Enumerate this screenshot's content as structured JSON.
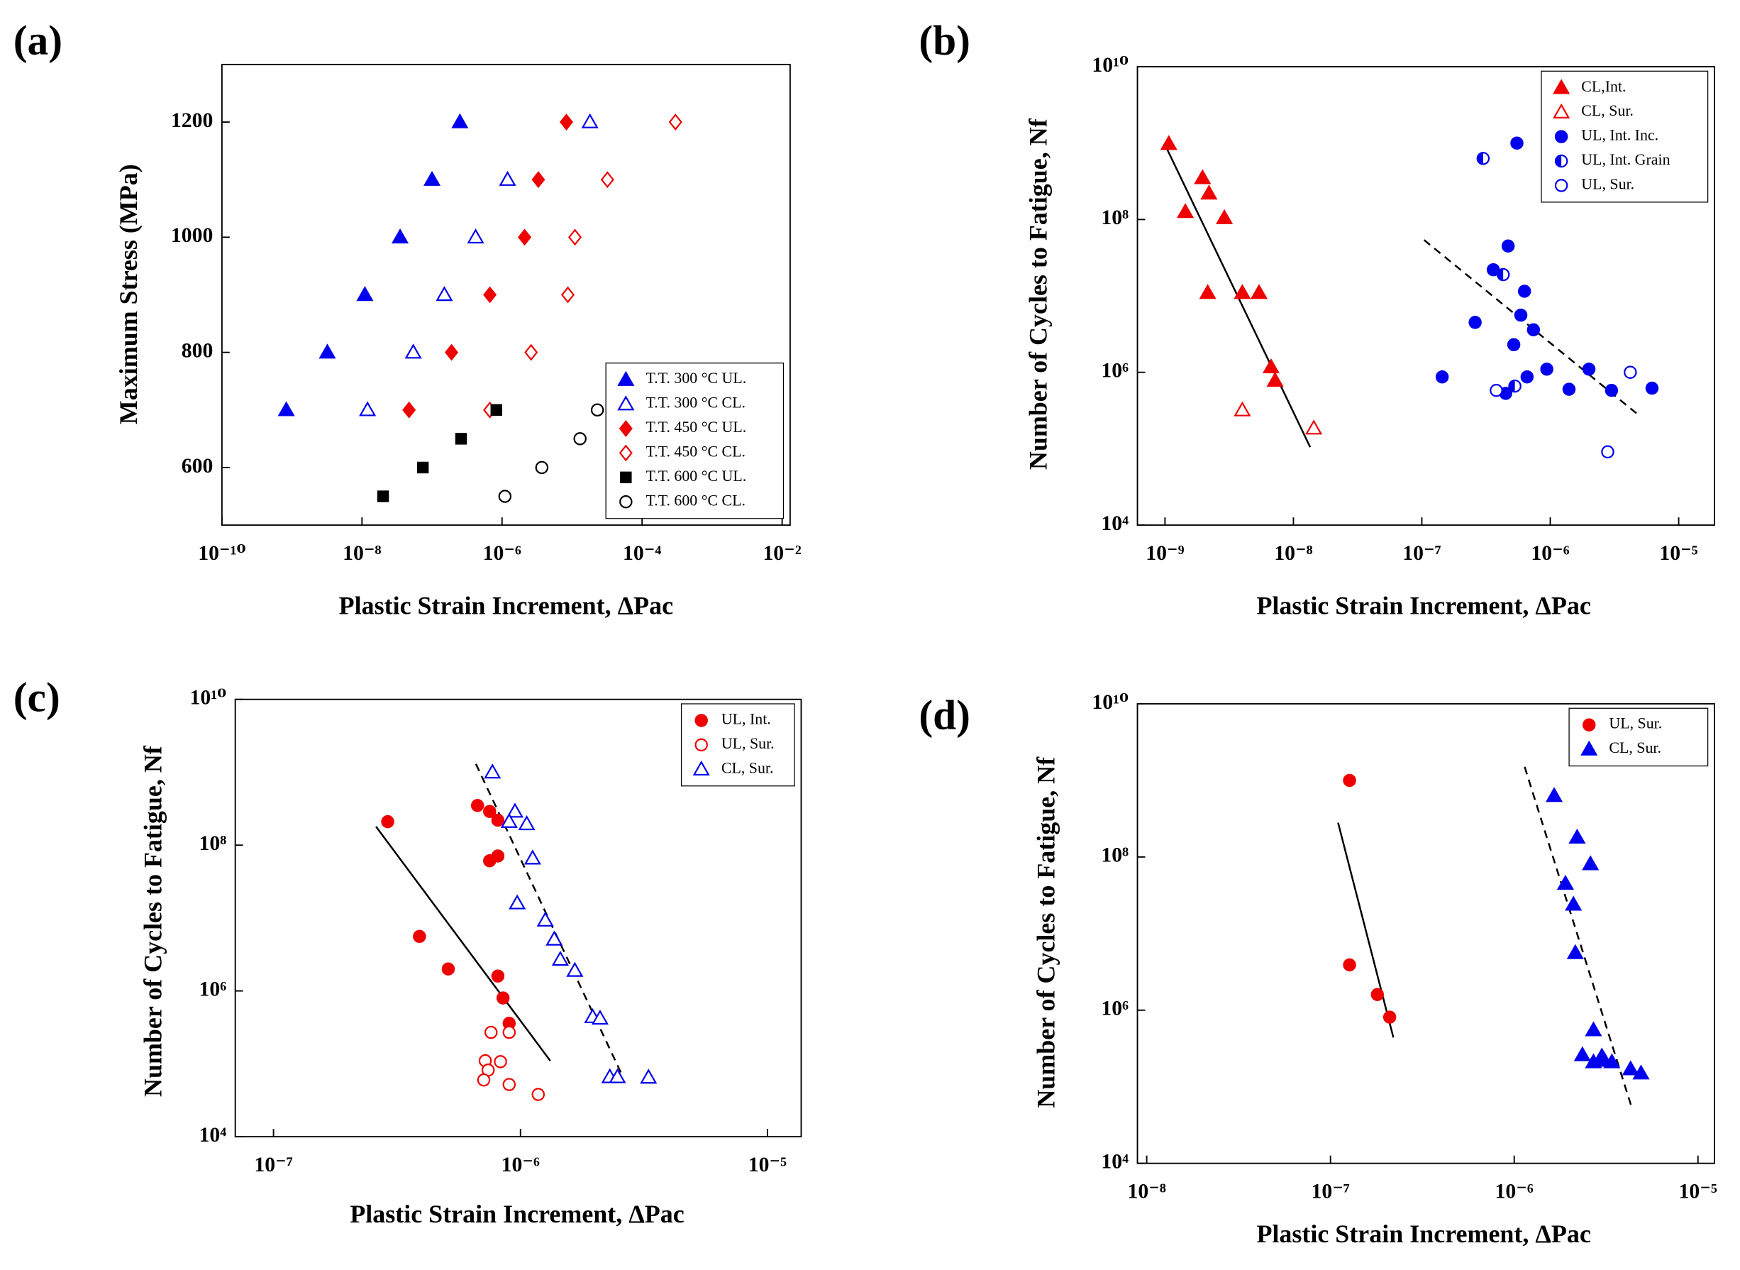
{
  "chart_data": [
    {
      "type": "scatter",
      "panel_label": "(a)",
      "x_label": "Plastic Strain Increment, ΔPac",
      "y_label": "Maximum Stress (MPa)",
      "xscale": "log",
      "yscale": "linear",
      "xlim": [
        1e-10,
        0.013
      ],
      "ylim": [
        500,
        1300
      ],
      "xticks": [
        {
          "value": 1e-10,
          "label": "10⁻¹⁰"
        },
        {
          "value": 1e-08,
          "label": "10⁻⁸"
        },
        {
          "value": 1e-06,
          "label": "10⁻⁶"
        },
        {
          "value": 0.0001,
          "label": "10⁻⁴"
        },
        {
          "value": 0.01,
          "label": "10⁻²"
        }
      ],
      "yticks": [
        600,
        800,
        1000,
        1200
      ],
      "legend": "lower right",
      "series": [
        {
          "name": "T.T. 300 °C UL.",
          "color": "#0000ee",
          "marker": "triangle",
          "filled": true,
          "x": [
            8.3e-10,
            3.2e-09,
            1.1e-08,
            3.5e-08,
            1e-07,
            2.5e-07
          ],
          "values": [
            700,
            800,
            900,
            1000,
            1100,
            1200
          ]
        },
        {
          "name": "T.T. 300 °C CL.",
          "color": "#0000ee",
          "marker": "triangle",
          "filled": false,
          "x": [
            1.2e-08,
            5.4e-08,
            1.5e-07,
            4.2e-07,
            1.2e-06,
            1.8e-05
          ],
          "values": [
            700,
            800,
            900,
            1000,
            1100,
            1200
          ]
        },
        {
          "name": "T.T. 450 °C UL.",
          "color": "#ee0000",
          "marker": "diamond",
          "filled": true,
          "x": [
            4.7e-08,
            1.9e-07,
            6.7e-07,
            2.1e-06,
            3.3e-06,
            8.3e-06
          ],
          "values": [
            700,
            800,
            900,
            1000,
            1100,
            1200
          ]
        },
        {
          "name": "T.T. 450 °C CL.",
          "color": "#ee0000",
          "marker": "diamond",
          "filled": false,
          "x": [
            6.7e-07,
            2.6e-06,
            8.7e-06,
            1.1e-05,
            3.2e-05,
            0.0003
          ],
          "values": [
            700,
            800,
            900,
            1000,
            1100,
            1200
          ]
        },
        {
          "name": "T.T. 600 °C UL.",
          "color": "#000000",
          "marker": "square",
          "filled": true,
          "x": [
            2e-08,
            7.4e-08,
            2.6e-07,
            8.3e-07
          ],
          "values": [
            550,
            600,
            650,
            700
          ]
        },
        {
          "name": "T.T. 600 °C CL.",
          "color": "#000000",
          "marker": "circle",
          "filled": false,
          "x": [
            1.1e-06,
            3.7e-06,
            1.3e-05,
            2.3e-05
          ],
          "values": [
            550,
            600,
            650,
            700
          ]
        }
      ]
    },
    {
      "type": "scatter",
      "panel_label": "(b)",
      "x_label": "Plastic Strain Increment, ΔPac",
      "y_label": "Number of Cycles to Fatigue, Nf",
      "xscale": "log",
      "yscale": "log",
      "xlim": [
        6.1e-10,
        1.9e-05
      ],
      "ylim": [
        10000,
        10000000000
      ],
      "xticks": [
        {
          "value": 1e-09,
          "label": "10⁻⁹"
        },
        {
          "value": 1e-08,
          "label": "10⁻⁸"
        },
        {
          "value": 1e-07,
          "label": "10⁻⁷"
        },
        {
          "value": 1e-06,
          "label": "10⁻⁶"
        },
        {
          "value": 1e-05,
          "label": "10⁻⁵"
        }
      ],
      "yticks": [
        {
          "value": 10000,
          "label": "10⁴"
        },
        {
          "value": 1000000,
          "label": "10⁶"
        },
        {
          "value": 100000000,
          "label": "10⁸"
        },
        {
          "value": 10000000000,
          "label": "10¹⁰"
        }
      ],
      "legend": "upper right",
      "series": [
        {
          "name": "CL,Int.",
          "color": "#ee0000",
          "marker": "triangle",
          "filled": true,
          "x": [
            1.07e-09,
            1.44e-09,
            1.96e-09,
            2.2e-09,
            2.9e-09,
            2.15e-09,
            4e-09,
            5.4e-09,
            6.7e-09,
            7.2e-09
          ],
          "values": [
            980000000,
            126000000,
            350000000,
            220000000,
            105000000,
            11000000,
            11000000,
            11000000,
            1170000,
            780000
          ]
        },
        {
          "name": "CL, Sur.",
          "color": "#ee0000",
          "marker": "triangle",
          "filled": false,
          "x": [
            4e-09,
            1.44e-08
          ],
          "values": [
            320000,
            185000
          ]
        },
        {
          "name": "UL, Int. Inc.",
          "color": "#0000ee",
          "marker": "circle",
          "filled": true,
          "x": [
            5.5e-07,
            4.7e-07,
            3.6e-07,
            6.3e-07,
            2.6e-07,
            5.9e-07,
            7.4e-07,
            5.2e-07,
            9.4e-07,
            2e-06,
            1.44e-07,
            6.6e-07,
            4.5e-07,
            1.4e-06,
            3e-06,
            6.2e-06
          ],
          "values": [
            1000000000,
            45000000,
            22000000,
            11500000,
            4500000,
            5600000,
            3600000,
            2300000,
            1100000,
            1100000,
            870000,
            870000,
            530000,
            600000,
            580000,
            620000
          ]
        },
        {
          "name": "UL, Int. Grain",
          "color": "#0000ee",
          "marker": "half-circle",
          "filled": true,
          "x": [
            3e-07,
            4.3e-07,
            5.3e-07
          ],
          "values": [
            630000000,
            19000000,
            660000
          ]
        },
        {
          "name": "UL, Sur.",
          "color": "#0000ee",
          "marker": "circle",
          "filled": false,
          "x": [
            3.8e-07,
            4.2e-06,
            2.8e-06
          ],
          "values": [
            580000,
            1000000,
            91000
          ]
        }
      ],
      "fits": [
        {
          "x": [
            1e-09,
            1.35e-08
          ],
          "values": [
            950000000,
            105000
          ],
          "dash": false
        },
        {
          "x": [
            1.04e-07,
            4.7e-06
          ],
          "values": [
            54000000,
            290000
          ],
          "dash": true
        }
      ]
    },
    {
      "type": "scatter",
      "panel_label": "(c)",
      "x_label": "Plastic Strain Increment, ΔPac",
      "y_label": "Number of Cycles to Fatigue, Nf",
      "xscale": "log",
      "yscale": "log",
      "xlim": [
        7e-08,
        1.37e-05
      ],
      "ylim": [
        10000,
        10000000000
      ],
      "xticks": [
        {
          "value": 1e-07,
          "label": "10⁻⁷"
        },
        {
          "value": 1e-06,
          "label": "10⁻⁶"
        },
        {
          "value": 1e-05,
          "label": "10⁻⁵"
        }
      ],
      "yticks": [
        {
          "value": 10000,
          "label": "10⁴"
        },
        {
          "value": 1000000,
          "label": "10⁶"
        },
        {
          "value": 100000000,
          "label": "10⁸"
        },
        {
          "value": 10000000000,
          "label": "10¹⁰"
        }
      ],
      "legend": "upper right",
      "series": [
        {
          "name": "UL, Int.",
          "color": "#ee0000",
          "marker": "circle",
          "filled": true,
          "x": [
            2.9e-07,
            6.7e-07,
            7.5e-07,
            8.1e-07,
            7.5e-07,
            8.1e-07,
            3.9e-07,
            5.1e-07,
            8.1e-07,
            8.5e-07,
            9e-07
          ],
          "values": [
            210000000,
            350000000,
            290000000,
            220000000,
            61000000,
            71000000,
            5600000,
            2000000,
            1600000,
            800000,
            360000
          ]
        },
        {
          "name": "UL, Sur.",
          "color": "#ee0000",
          "marker": "circle",
          "filled": false,
          "x": [
            7.6e-07,
            9e-07,
            7.2e-07,
            8.3e-07,
            7.4e-07,
            7.1e-07,
            9e-07,
            1.18e-06
          ],
          "values": [
            270000,
            270000,
            110000,
            107000,
            82000,
            60000,
            52000,
            38000
          ]
        },
        {
          "name": "CL, Sur.",
          "color": "#0000ee",
          "marker": "triangle",
          "filled": false,
          "x": [
            7.7e-07,
            9.5e-07,
            9e-07,
            1.06e-06,
            1.12e-06,
            9.7e-07,
            1.26e-06,
            1.37e-06,
            1.45e-06,
            1.66e-06,
            1.96e-06,
            2.1e-06,
            2.3e-06,
            2.47e-06,
            3.3e-06
          ],
          "values": [
            1000000000,
            290000000,
            210000000,
            195000000,
            66000000,
            16000000,
            9300000,
            5100000,
            2700000,
            1900000,
            440000,
            420000,
            66000,
            66000,
            65000
          ]
        }
      ],
      "fits": [
        {
          "x": [
            2.6e-07,
            1.32e-06
          ],
          "values": [
            180000000,
            110000
          ],
          "dash": false
        },
        {
          "x": [
            6.6e-07,
            2.6e-06
          ],
          "values": [
            1300000000,
            66000
          ],
          "dash": true
        }
      ]
    },
    {
      "type": "scatter",
      "panel_label": "(d)",
      "x_label": "Plastic Strain Increment, ΔPac",
      "y_label": "Number of Cycles to Fatigue, Nf",
      "xscale": "log",
      "yscale": "log",
      "xlim": [
        8.9e-09,
        1.23e-05
      ],
      "ylim": [
        10000,
        10000000000
      ],
      "xticks": [
        {
          "value": 1e-08,
          "label": "10⁻⁸"
        },
        {
          "value": 1e-07,
          "label": "10⁻⁷"
        },
        {
          "value": 1e-06,
          "label": "10⁻⁶"
        },
        {
          "value": 1e-05,
          "label": "10⁻⁵"
        }
      ],
      "yticks": [
        {
          "value": 10000,
          "label": "10⁴"
        },
        {
          "value": 1000000,
          "label": "10⁶"
        },
        {
          "value": 100000000,
          "label": "10⁸"
        },
        {
          "value": 10000000000,
          "label": "10¹⁰"
        }
      ],
      "legend": "upper right",
      "series": [
        {
          "name": "UL, Sur.",
          "color": "#ee0000",
          "marker": "circle",
          "filled": true,
          "x": [
            1.27e-07,
            1.27e-07,
            1.8e-07,
            2.1e-07
          ],
          "values": [
            1000000000,
            3900000,
            1600000,
            810000
          ]
        },
        {
          "name": "CL, Sur.",
          "color": "#0000ee",
          "marker": "triangle",
          "filled": true,
          "x": [
            1.65e-06,
            2.2e-06,
            2.6e-06,
            1.9e-06,
            2.1e-06,
            2.15e-06,
            2.7e-06,
            2.35e-06,
            2.7e-06,
            3.1e-06,
            3e-06,
            3.4e-06,
            4.3e-06,
            4.9e-06
          ],
          "values": [
            630000000,
            180000000,
            81000000,
            45000000,
            24000000,
            5600000,
            550000,
            260000,
            210000,
            220000,
            250000,
            210000,
            170000,
            150000
          ]
        }
      ],
      "fits": [
        {
          "x": [
            1.1e-07,
            2.2e-07
          ],
          "values": [
            280000000,
            440000
          ],
          "dash": false
        },
        {
          "x": [
            1.14e-06,
            4.4e-06
          ],
          "values": [
            1500000000,
            50000
          ],
          "dash": true
        }
      ]
    }
  ]
}
